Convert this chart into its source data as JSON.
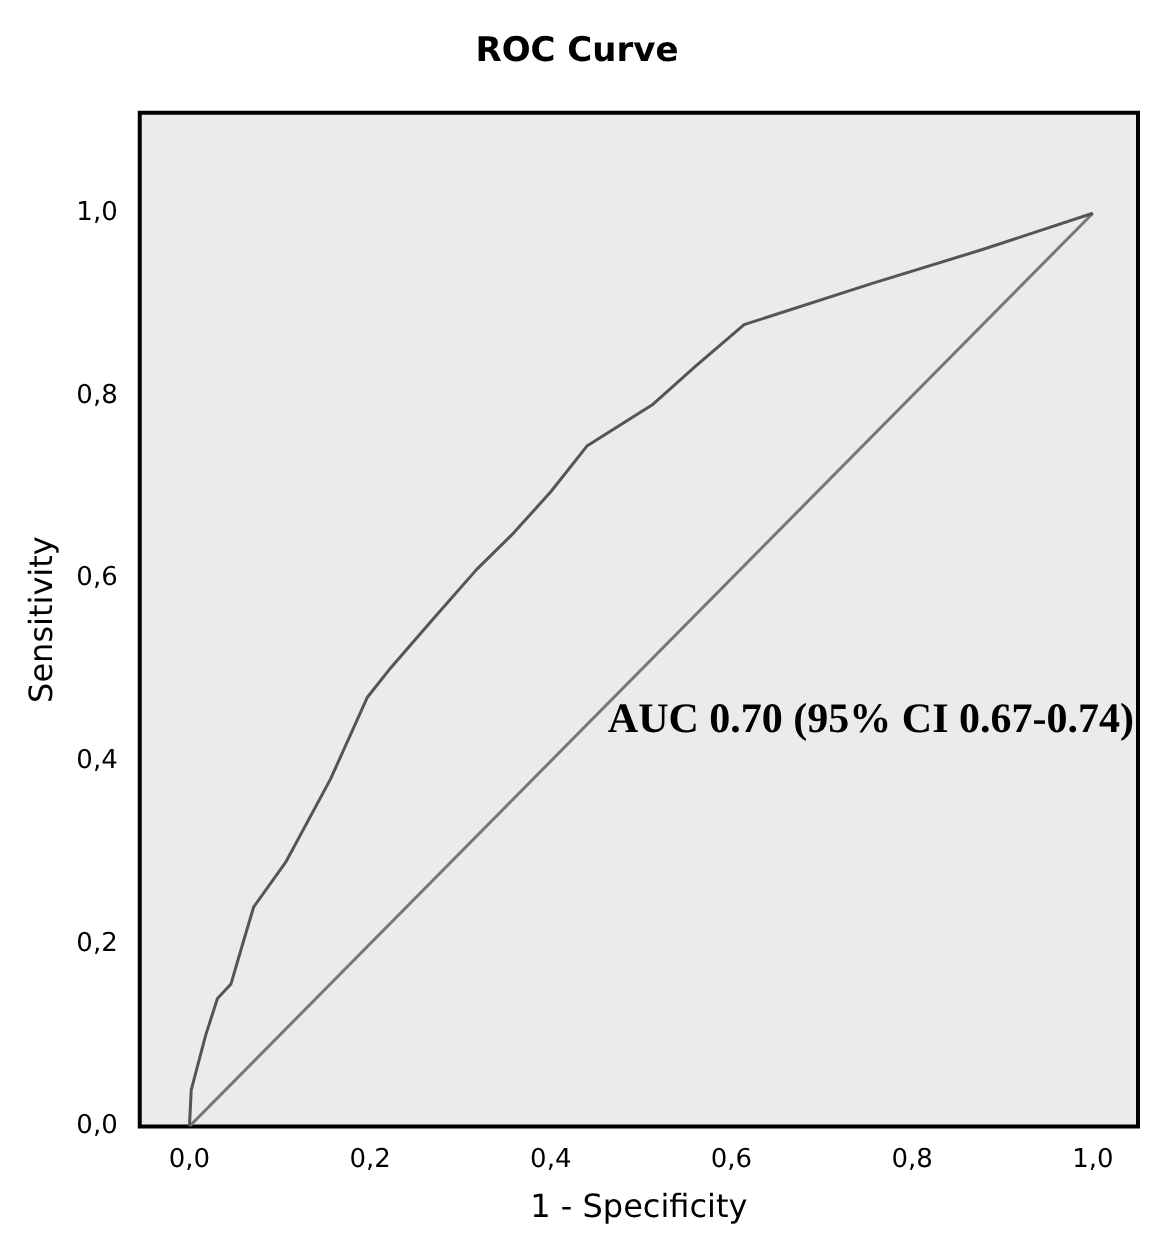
{
  "chart_data": {
    "type": "line",
    "title": "ROC Curve",
    "xlabel": "1 - Specificity",
    "ylabel": "Sensitivity",
    "marker": "none",
    "grid": false,
    "legend": false,
    "xlim": [
      -0.055,
      1.05
    ],
    "ylim": [
      0,
      1.11
    ],
    "xticks": [
      {
        "value": 0,
        "label": "0,0"
      },
      {
        "value": 0.2,
        "label": "0,2"
      },
      {
        "value": 0.4,
        "label": "0,4"
      },
      {
        "value": 0.6,
        "label": "0,6"
      },
      {
        "value": 0.8,
        "label": "0,8"
      },
      {
        "value": 1,
        "label": "1,0"
      }
    ],
    "yticks": [
      {
        "value": 0,
        "label": "0,0"
      },
      {
        "value": 0.2,
        "label": "0,2"
      },
      {
        "value": 0.4,
        "label": "0,4"
      },
      {
        "value": 0.6,
        "label": "0,6"
      },
      {
        "value": 0.8,
        "label": "0,8"
      },
      {
        "value": 1,
        "label": "1,0"
      }
    ],
    "series": [
      {
        "color": "#555555",
        "x": [
          0,
          0.002,
          0.018,
          0.031,
          0.046,
          0.059,
          0.071,
          0.107,
          0.156,
          0.197,
          0.221,
          0.27,
          0.318,
          0.359,
          0.4,
          0.44,
          0.512,
          0.561,
          0.614,
          0.755,
          0.877,
          1
        ],
        "values": [
          0,
          0.04,
          0.1,
          0.14,
          0.156,
          0.2,
          0.24,
          0.29,
          0.38,
          0.47,
          0.5,
          0.556,
          0.61,
          0.65,
          0.695,
          0.745,
          0.79,
          0.833,
          0.878,
          0.923,
          0.96,
          1
        ]
      },
      {
        "color": "#777777",
        "x": [
          0,
          1
        ],
        "values": [
          0,
          1
        ]
      }
    ],
    "annotations": [
      "AUC 0.70 (95% CI 0.67-0.74)"
    ]
  }
}
